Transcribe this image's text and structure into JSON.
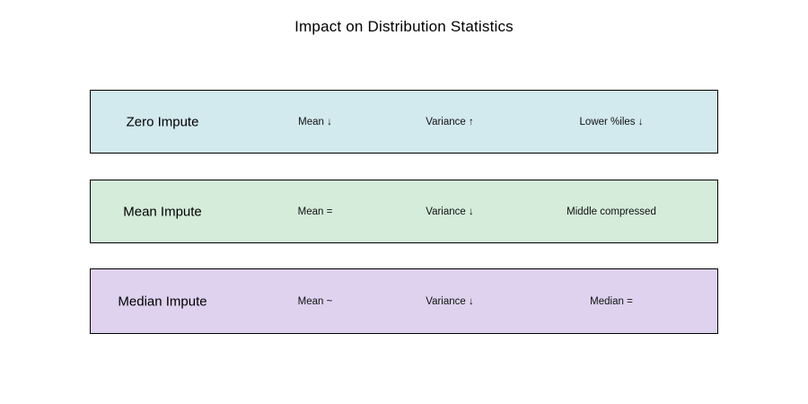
{
  "title": "Impact on Distribution Statistics",
  "colors": {
    "background": "#ffffff",
    "border": "#000000",
    "zero_impute_bg": "#d2e9ee",
    "mean_impute_bg": "#d4ecd9",
    "median_impute_bg": "#ded2ef"
  },
  "rows": [
    {
      "label": "Zero Impute",
      "bg": "#d2e9ee",
      "stats": [
        "Mean ↓",
        "Variance ↑",
        "Lower %iles ↓"
      ]
    },
    {
      "label": "Mean Impute",
      "bg": "#d4ecd9",
      "stats": [
        "Mean =",
        "Variance ↓",
        "Middle compressed"
      ]
    },
    {
      "label": "Median Impute",
      "bg": "#ded2ef",
      "stats": [
        "Mean ~",
        "Variance ↓",
        "Median ="
      ]
    }
  ]
}
